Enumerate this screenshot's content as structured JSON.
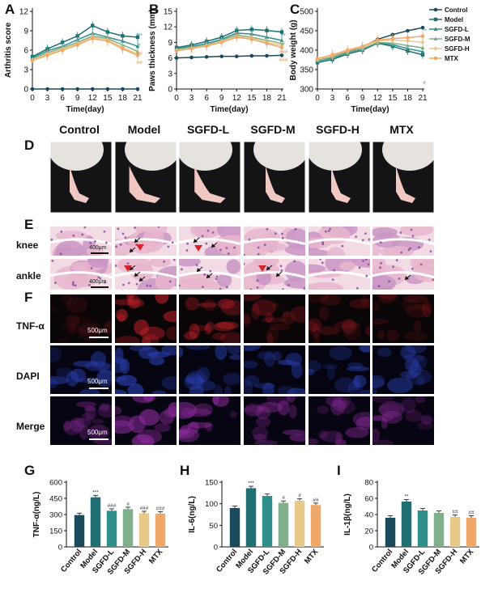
{
  "figure": {
    "panel_letters": {
      "A": "A",
      "B": "B",
      "C": "C",
      "D": "D",
      "E": "E",
      "F": "F",
      "G": "G",
      "H": "H",
      "I": "I"
    },
    "group_headers": [
      "Control",
      "Model",
      "SGFD-L",
      "SGFD-M",
      "SGFD-H",
      "MTX"
    ],
    "row_labels": {
      "knee": "knee",
      "ankle": "ankle",
      "tnf": "TNF-α",
      "dapi": "DAPI",
      "merge": "Merge"
    },
    "scale_bars": {
      "histology": "400μm",
      "fluorescence": "500μm"
    },
    "legend": [
      "Control",
      "Model",
      "SGFD-L",
      "SGFD-M",
      "SGFD-H",
      "MTX"
    ],
    "colors": {
      "Control": "#1b4a5a",
      "Model": "#1e6e72",
      "SGFD-L": "#2f8f8a",
      "SGFD-M": "#7fb08e",
      "SGFD-H": "#e8c98a",
      "MTX": "#f0a868",
      "sig_star": "#2c7fb8",
      "sig_hash_green": "#4a9a5a",
      "sig_hash_orange": "#e0884a"
    }
  },
  "chart_data": [
    {
      "id": "A",
      "type": "line",
      "title": "",
      "xlabel": "Time(day)",
      "ylabel": "Arthritis score",
      "x": [
        0,
        3,
        6,
        9,
        12,
        15,
        18,
        21
      ],
      "xticks": [
        "0",
        "3",
        "6",
        "9",
        "12",
        "15",
        "18",
        "21"
      ],
      "yticks": [
        "0",
        "3",
        "6",
        "9",
        "12"
      ],
      "ylim": [
        0,
        12
      ],
      "series": [
        {
          "name": "Control",
          "values": [
            0,
            0,
            0,
            0,
            0,
            0,
            0,
            0
          ]
        },
        {
          "name": "Model",
          "values": [
            5.0,
            6.2,
            7.2,
            8.2,
            9.8,
            8.8,
            8.2,
            8.0
          ]
        },
        {
          "name": "SGFD-L",
          "values": [
            4.8,
            5.9,
            6.6,
            7.6,
            8.6,
            8.0,
            7.4,
            6.6
          ]
        },
        {
          "name": "SGFD-M",
          "values": [
            4.6,
            5.6,
            6.4,
            7.2,
            8.2,
            7.8,
            6.8,
            5.8
          ]
        },
        {
          "name": "SGFD-H",
          "values": [
            4.5,
            5.4,
            6.2,
            7.0,
            8.0,
            7.6,
            6.4,
            5.4
          ]
        },
        {
          "name": "MTX",
          "values": [
            4.4,
            5.2,
            6.0,
            6.8,
            7.8,
            7.4,
            6.2,
            5.2
          ]
        }
      ],
      "annotations": [
        "***",
        "#",
        "##",
        "##"
      ]
    },
    {
      "id": "B",
      "type": "line",
      "title": "",
      "xlabel": "Time(day)",
      "ylabel": "Paws thickness (mm)",
      "x": [
        0,
        3,
        6,
        9,
        12,
        15,
        18,
        21
      ],
      "xticks": [
        "0",
        "3",
        "6",
        "9",
        "12",
        "15",
        "18",
        "21"
      ],
      "yticks": [
        "0",
        "3",
        "6",
        "9",
        "12",
        "15"
      ],
      "ylim": [
        0,
        15
      ],
      "series": [
        {
          "name": "Control",
          "values": [
            6.0,
            6.1,
            6.2,
            6.3,
            6.3,
            6.4,
            6.4,
            6.5
          ]
        },
        {
          "name": "Model",
          "values": [
            8.0,
            8.5,
            9.2,
            10.0,
            11.3,
            11.5,
            11.3,
            11.0
          ]
        },
        {
          "name": "SGFD-L",
          "values": [
            7.8,
            8.2,
            8.8,
            9.6,
            10.8,
            10.6,
            10.0,
            9.4
          ]
        },
        {
          "name": "SGFD-M",
          "values": [
            7.6,
            8.0,
            8.6,
            9.4,
            10.4,
            10.0,
            9.4,
            8.8
          ]
        },
        {
          "name": "SGFD-H",
          "values": [
            7.5,
            7.9,
            8.4,
            9.2,
            10.2,
            9.8,
            9.0,
            8.4
          ]
        },
        {
          "name": "MTX",
          "values": [
            7.4,
            7.8,
            8.3,
            9.0,
            10.0,
            9.6,
            8.8,
            8.0
          ]
        }
      ],
      "annotations": [
        "**",
        "#",
        "###",
        "###"
      ]
    },
    {
      "id": "C",
      "type": "line",
      "title": "",
      "xlabel": "Time(day)",
      "ylabel": "Body weight (g)",
      "x": [
        0,
        3,
        6,
        9,
        12,
        15,
        18,
        21
      ],
      "xticks": [
        "0",
        "3",
        "6",
        "9",
        "12",
        "15",
        "18",
        "21"
      ],
      "yticks": [
        "300",
        "350",
        "400",
        "450",
        "500"
      ],
      "ylim": [
        300,
        500
      ],
      "series": [
        {
          "name": "Control",
          "values": [
            372,
            382,
            396,
            408,
            428,
            440,
            450,
            458
          ]
        },
        {
          "name": "Model",
          "values": [
            368,
            376,
            390,
            400,
            418,
            410,
            398,
            388
          ]
        },
        {
          "name": "SGFD-L",
          "values": [
            372,
            380,
            392,
            402,
            420,
            414,
            404,
            396
          ]
        },
        {
          "name": "SGFD-M",
          "values": [
            374,
            382,
            394,
            404,
            420,
            418,
            412,
            406
          ]
        },
        {
          "name": "SGFD-H",
          "values": [
            376,
            386,
            398,
            408,
            424,
            426,
            424,
            420
          ]
        },
        {
          "name": "MTX",
          "values": [
            378,
            388,
            400,
            410,
            426,
            430,
            432,
            436
          ]
        }
      ],
      "annotations": [
        "**",
        "#"
      ]
    },
    {
      "id": "G",
      "type": "bar",
      "title": "",
      "xlabel": "",
      "ylabel": "TNF-α(ng/L)",
      "categories": [
        "Control",
        "Model",
        "SGFD-L",
        "SGFD-M",
        "SGFD-H",
        "MTX"
      ],
      "values": [
        295,
        460,
        335,
        350,
        312,
        308
      ],
      "yticks": [
        "0",
        "150",
        "300",
        "450",
        "600"
      ],
      "ylim": [
        0,
        600
      ],
      "labels": [
        "",
        "***",
        "###",
        "#",
        "###",
        "###"
      ]
    },
    {
      "id": "H",
      "type": "bar",
      "title": "",
      "xlabel": "",
      "ylabel": "IL-6(ng/L)",
      "categories": [
        "Control",
        "Model",
        "SGFD-L",
        "SGFD-M",
        "SGFD-H",
        "MTX"
      ],
      "values": [
        90,
        136,
        118,
        102,
        107,
        97
      ],
      "yticks": [
        "0",
        "50",
        "100",
        "150"
      ],
      "ylim": [
        0,
        150
      ],
      "labels": [
        "",
        "***",
        "",
        "#",
        "#",
        "##"
      ]
    },
    {
      "id": "I",
      "type": "bar",
      "title": "",
      "xlabel": "",
      "ylabel": "IL-1β(ng/L)",
      "categories": [
        "Control",
        "Model",
        "SGFD-L",
        "SGFD-M",
        "SGFD-H",
        "MTX"
      ],
      "values": [
        36,
        56,
        45,
        42,
        37,
        36
      ],
      "yticks": [
        "0",
        "20",
        "40",
        "60",
        "80"
      ],
      "ylim": [
        0,
        80
      ],
      "labels": [
        "",
        "**",
        "",
        "",
        "##",
        "##"
      ]
    }
  ]
}
